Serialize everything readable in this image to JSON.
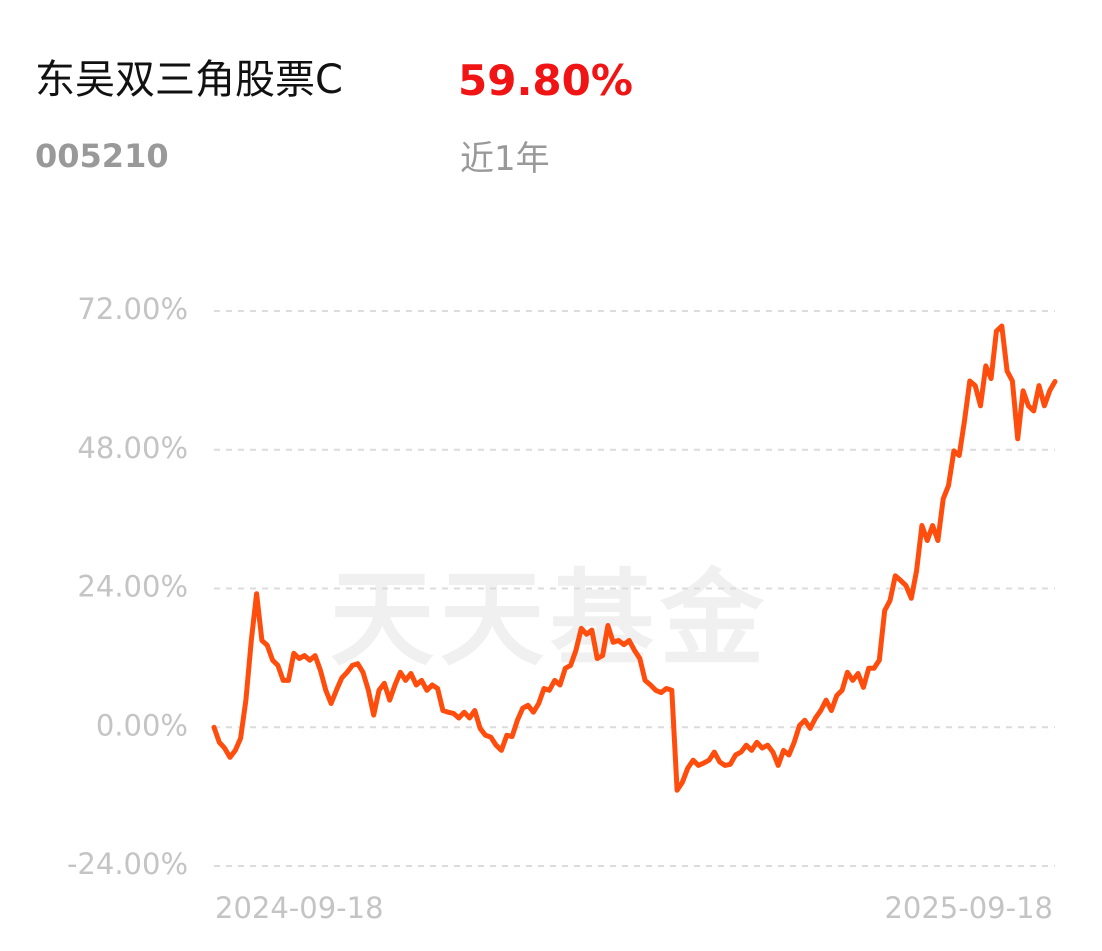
{
  "header": {
    "fund_name": "东吴双三角股票C",
    "return": "59.80%",
    "code": "005210",
    "period": "近1年"
  },
  "watermark": "天天基金",
  "chart_data": {
    "type": "line",
    "x_labels": [
      "2024-09-18",
      "2025-09-18"
    ],
    "ylim": [
      -24,
      72
    ],
    "yticks": [
      {
        "value": 72,
        "label": "72.00%"
      },
      {
        "value": 48,
        "label": "48.00%"
      },
      {
        "value": 24,
        "label": "24.00%"
      },
      {
        "value": 0,
        "label": "0.00%"
      },
      {
        "value": -24,
        "label": "-24.00%"
      }
    ],
    "grid": true,
    "series": [
      {
        "color": "#ff4d0d",
        "values": [
          0,
          -2.6,
          -3.6,
          -5.2,
          -4,
          -1.9,
          4.7,
          15,
          23.1,
          15,
          14.2,
          11.6,
          10.7,
          8.1,
          8.1,
          12.8,
          11.9,
          12.4,
          11.6,
          12.4,
          9.8,
          6.4,
          4.1,
          6.4,
          8.5,
          9.5,
          10.7,
          11,
          9.5,
          6.4,
          2.1,
          6.4,
          7.6,
          4.7,
          7.3,
          9.5,
          8.1,
          9.3,
          7.3,
          8.1,
          6.4,
          7.3,
          6.7,
          2.9,
          2.6,
          2.4,
          1.6,
          2.6,
          1.6,
          2.9,
          -0.2,
          -1.4,
          -1.7,
          -3.1,
          -4,
          -1.4,
          -1.6,
          1.2,
          3.3,
          3.8,
          2.6,
          4.1,
          6.7,
          6.4,
          8.1,
          7.3,
          10.2,
          10.7,
          13.3,
          17.1,
          16.1,
          16.8,
          11.9,
          12.4,
          17.6,
          14.7,
          15,
          14.3,
          15,
          13.3,
          11.9,
          8.1,
          7.3,
          6.4,
          6,
          6.7,
          6.4,
          -10.9,
          -9.5,
          -7.1,
          -5.7,
          -6.6,
          -6.2,
          -5.7,
          -4.3,
          -6,
          -6.6,
          -6.4,
          -4.8,
          -4.3,
          -3.1,
          -4,
          -2.6,
          -3.6,
          -3.1,
          -4.3,
          -6.6,
          -4,
          -4.8,
          -2.6,
          0.3,
          1.2,
          -0.2,
          1.6,
          2.9,
          4.7,
          2.9,
          5.5,
          6.4,
          9.5,
          8.1,
          9.3,
          6.9,
          10.2,
          10.2,
          11.6,
          20.2,
          21.9,
          26.2,
          25.4,
          24.5,
          22.3,
          27.1,
          34.9,
          32.3,
          34.9,
          32.3,
          39.5,
          41.8,
          47.8,
          47,
          53,
          59.9,
          59.1,
          55.6,
          62.5,
          60.3,
          68.5,
          69.4,
          61.6,
          59.9,
          49.9,
          58.2,
          55.6,
          54.7,
          59.1,
          55.6,
          58.2,
          59.8
        ]
      }
    ]
  }
}
